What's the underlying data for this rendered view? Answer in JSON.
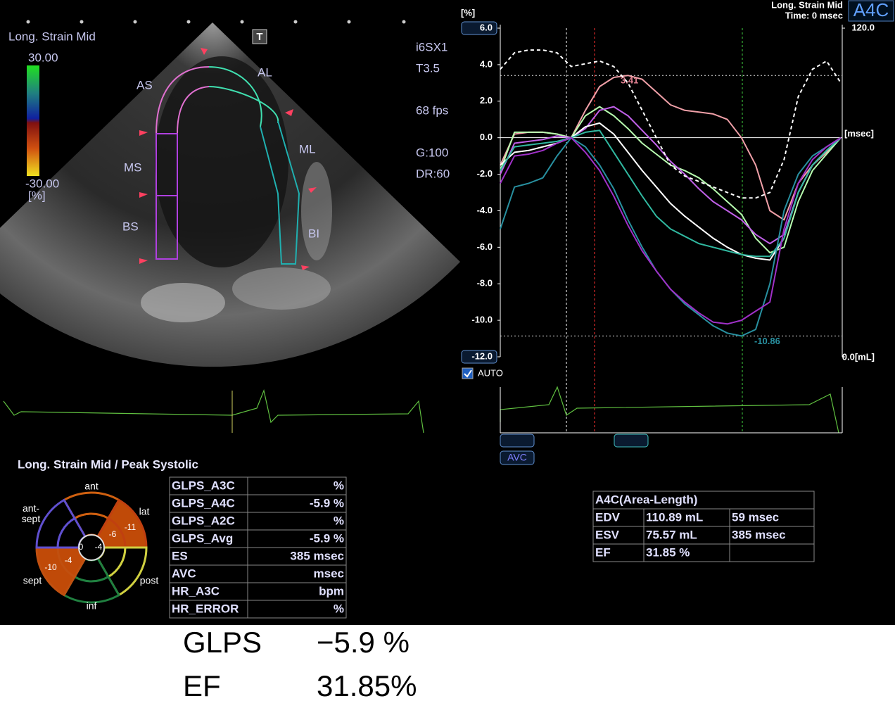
{
  "header": {
    "title": "Long. Strain Mid",
    "time": "Time: 0 msec",
    "view": "A4C"
  },
  "echo_panel": {
    "mode_label": "Long. Strain Mid",
    "scale_max": "30.00",
    "scale_min": "-30.00",
    "scale_unit": "[%]",
    "t_icon": "T",
    "segment_labels": [
      "AS",
      "MS",
      "BS",
      "AL",
      "ML",
      "BI"
    ],
    "settings": [
      "i6SX1",
      "T3.5",
      "68 fps",
      "G:100",
      "DR:60"
    ]
  },
  "chart_data": {
    "type": "line",
    "y_unit": "[%]",
    "x_unit": "[msec]",
    "ylim": [
      -12,
      6
    ],
    "yticks": [
      {
        "value": 6,
        "label": "6.0"
      },
      {
        "value": 4,
        "label": "4.0"
      },
      {
        "value": 2,
        "label": "2.0"
      },
      {
        "value": 0,
        "label": "0.0"
      },
      {
        "value": -2,
        "label": "-2.0"
      },
      {
        "value": -4,
        "label": "-4.0"
      },
      {
        "value": -6,
        "label": "-6.0"
      },
      {
        "value": -8,
        "label": "-8.0"
      },
      {
        "value": -10,
        "label": "-10.0"
      },
      {
        "value": -12,
        "label": "-12.0"
      }
    ],
    "y2lim": [
      0,
      120
    ],
    "y2ticks": [
      {
        "value": 120,
        "label": "120.0"
      },
      {
        "value": 0,
        "label": "0.0[mL]"
      }
    ],
    "peak_labels": [
      3.41,
      -10.86
    ],
    "auto_label": "AUTO",
    "avc_button": "AVC",
    "series": [
      {
        "color": "#f0a0a8",
        "values": [
          -1.5,
          0.2,
          0.3,
          0.3,
          0.2,
          0,
          1.5,
          2.8,
          3.3,
          3.41,
          3.2,
          2.5,
          1.8,
          1.5,
          1.4,
          1.3,
          1.0,
          0,
          -1.5,
          -4,
          -4.5,
          -2.5,
          -1.5,
          -0.8,
          0
        ]
      },
      {
        "color": "#b8ffb0",
        "values": [
          -1.8,
          0.3,
          0.3,
          0.3,
          0.2,
          0,
          1.2,
          1.7,
          1.2,
          0.5,
          -0.3,
          -0.9,
          -1.5,
          -1.8,
          -2.2,
          -2.8,
          -3.5,
          -4.2,
          -5.5,
          -6.3,
          -6.0,
          -3.5,
          -1.8,
          -0.9,
          0
        ]
      },
      {
        "color": "#c060e8",
        "values": [
          -2,
          -0.3,
          -0.2,
          -0.1,
          0.1,
          0,
          0.5,
          1.5,
          1.7,
          1.2,
          0.4,
          -0.4,
          -1.3,
          -2,
          -2.8,
          -3.5,
          -4,
          -4.5,
          -5.3,
          -5.8,
          -5.3,
          -3,
          -1.5,
          -0.7,
          0
        ]
      },
      {
        "color": "#ffffff",
        "values": [
          -1.5,
          -0.8,
          -0.7,
          -0.5,
          -0.3,
          0,
          0.6,
          0.8,
          0.2,
          -0.8,
          -1.8,
          -2.7,
          -3.6,
          -4.3,
          -4.9,
          -5.5,
          -6,
          -6.4,
          -6.6,
          -6.7,
          -5.5,
          -3,
          -1.5,
          -0.7,
          0
        ]
      },
      {
        "color": "#30b8a0",
        "values": [
          -1.8,
          -0.5,
          -0.4,
          -0.3,
          -0.2,
          0,
          0.3,
          0.4,
          -0.8,
          -2,
          -3.2,
          -4.3,
          -5,
          -5.4,
          -5.8,
          -6.0,
          -6.2,
          -6.4,
          -6.5,
          -6.5,
          -5.5,
          -3,
          -1.5,
          -0.7,
          0
        ]
      },
      {
        "color": "#2890a0",
        "values": [
          -5,
          -2.7,
          -2.5,
          -2.2,
          -1,
          0,
          -0.5,
          -1.5,
          -2.8,
          -4.5,
          -6,
          -7.3,
          -8.3,
          -9.1,
          -9.7,
          -10.3,
          -10.7,
          -10.86,
          -10.5,
          -8,
          -4,
          -2,
          -1,
          -0.5,
          0
        ]
      },
      {
        "color": "#a030c8",
        "values": [
          -2.5,
          -1,
          -0.9,
          -0.7,
          -0.3,
          0,
          -0.8,
          -1.8,
          -3.2,
          -4.8,
          -6.2,
          -7.3,
          -8.3,
          -9,
          -9.6,
          -10.1,
          -10.2,
          -10,
          -9.5,
          -9,
          -5,
          -2.5,
          -1.2,
          -0.5,
          0
        ]
      },
      {
        "color": "#ffffff",
        "axis": "y2",
        "dashed": true,
        "values": [
          105,
          111,
          112,
          112,
          111,
          106,
          107,
          108,
          106,
          100,
          90,
          80,
          70,
          66,
          64,
          62,
          60,
          58,
          58,
          60,
          72,
          95,
          105,
          108,
          100
        ]
      }
    ]
  },
  "bullseye": {
    "title": "Long. Strain Mid / Peak Systolic",
    "labels": [
      "ant",
      "lat",
      "ant-\nsept",
      "sept",
      "post",
      "inf"
    ],
    "values": [
      -6,
      -11,
      -4,
      0,
      -10,
      -4
    ]
  },
  "left_table": {
    "rows": [
      [
        "GLPS_A3C",
        "%"
      ],
      [
        "GLPS_A4C",
        "-5.9 %"
      ],
      [
        "GLPS_A2C",
        "%"
      ],
      [
        "GLPS_Avg",
        "-5.9 %"
      ],
      [
        "ES",
        "385 msec"
      ],
      [
        "AVC",
        "msec"
      ],
      [
        "HR_A3C",
        "bpm"
      ],
      [
        "HR_ERROR",
        "%"
      ]
    ]
  },
  "right_table": {
    "title": "A4C(Area-Length)",
    "rows": [
      [
        "EDV",
        "110.89 mL",
        "59 msec"
      ],
      [
        "ESV",
        "75.57 mL",
        "385 msec"
      ],
      [
        "EF",
        "31.85 %"
      ]
    ]
  },
  "summary": {
    "rows": [
      [
        "GLPS",
        "−5.9 %"
      ],
      [
        "EF",
        "31.85%"
      ]
    ]
  }
}
